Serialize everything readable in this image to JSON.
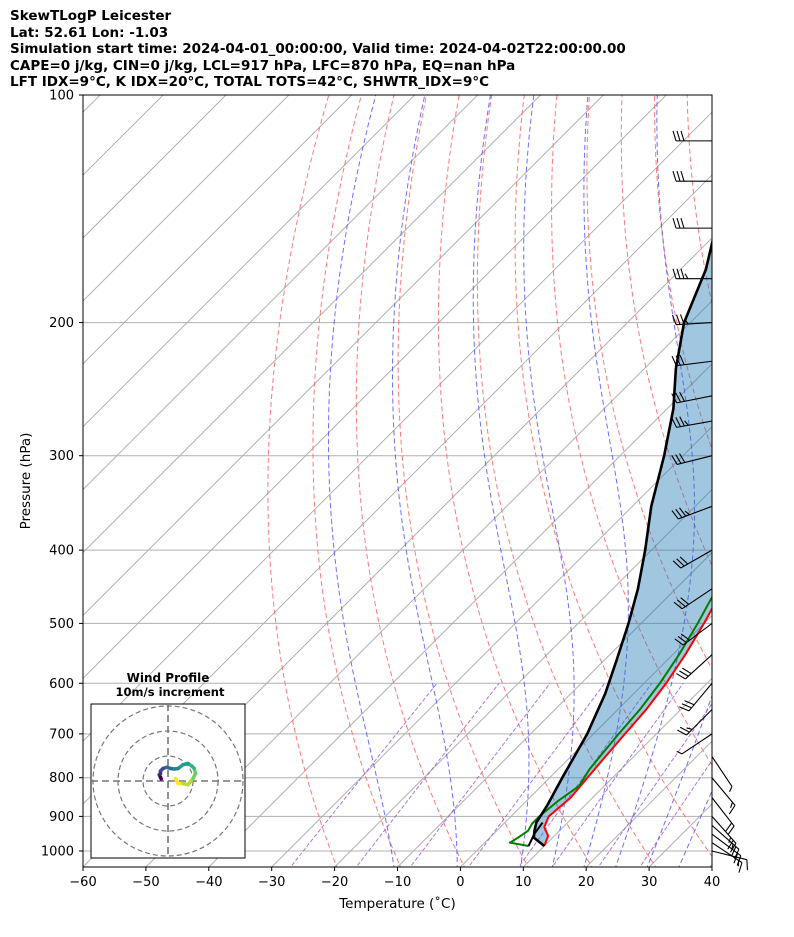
{
  "header": {
    "line1": "SkewTLogP Leicester",
    "line2": "Lat: 52.61   Lon: -1.03",
    "line3": "Simulation start time: 2024-04-01_00:00:00, Valid time: 2024-04-02T22:00:00.00",
    "line4": "CAPE=0 j/kg, CIN=0 j/kg, LCL=917 hPa, LFC=870 hPa, EQ=nan hPa",
    "line5": "LFT IDX=9°C, K IDX=20°C, TOTAL TOTS=42°C, SHWTR_IDX=9°C"
  },
  "chart_data": {
    "type": "line",
    "subtype": "skew-t log-p diagram",
    "xlabel": "Temperature (˚C)",
    "ylabel": "Pressure (hPa)",
    "xlim": [
      -60,
      40
    ],
    "ylim": [
      1050,
      100
    ],
    "x_ticks": [
      "−60",
      "−50",
      "−40",
      "−30",
      "−20",
      "−10",
      "0",
      "10",
      "20",
      "30",
      "40"
    ],
    "y_ticks": [
      "100",
      "200",
      "300",
      "400",
      "500",
      "600",
      "700",
      "800",
      "900",
      "1000"
    ],
    "y_log": true,
    "grid": true,
    "series": [
      {
        "role": "temperature",
        "color": "#ff0000",
        "points": [
          [
            10,
            985
          ],
          [
            9,
            955
          ],
          [
            7,
            930
          ],
          [
            6,
            900
          ],
          [
            6.5,
            850
          ],
          [
            6,
            800
          ],
          [
            5.5,
            750
          ],
          [
            5,
            700
          ],
          [
            4.5,
            650
          ],
          [
            3.5,
            600
          ],
          [
            2,
            550
          ],
          [
            0,
            500
          ],
          [
            -2.5,
            450
          ],
          [
            -5,
            410
          ],
          [
            -8,
            370
          ],
          [
            -10.5,
            340
          ],
          [
            -13,
            310
          ],
          [
            -16,
            290
          ],
          [
            -16,
            270
          ],
          [
            -13,
            250
          ],
          [
            -9,
            230
          ],
          [
            -4,
            215
          ],
          [
            0,
            200
          ],
          [
            3,
            185
          ],
          [
            6,
            170
          ],
          [
            8,
            155
          ],
          [
            10,
            140
          ],
          [
            12,
            125
          ],
          [
            15,
            110
          ],
          [
            17,
            100
          ]
        ]
      },
      {
        "role": "dewpoint",
        "color": "#008000",
        "points": [
          [
            7.5,
            985
          ],
          [
            4,
            975
          ],
          [
            4.5,
            960
          ],
          [
            5,
            940
          ],
          [
            4.5,
            920
          ],
          [
            4.5,
            900
          ],
          [
            5,
            860
          ],
          [
            6,
            820
          ],
          [
            5,
            780
          ],
          [
            4.5,
            740
          ],
          [
            4,
            700
          ],
          [
            3.5,
            650
          ],
          [
            2.5,
            600
          ],
          [
            1,
            550
          ],
          [
            -1,
            500
          ],
          [
            -3.5,
            450
          ],
          [
            -6.5,
            410
          ],
          [
            -10,
            370
          ],
          [
            -13,
            330
          ],
          [
            -16.5,
            300
          ],
          [
            -20,
            285
          ],
          [
            -20,
            270
          ],
          [
            -20,
            255
          ],
          [
            -24,
            240
          ],
          [
            -26,
            220
          ],
          [
            -25.5,
            205
          ],
          [
            -26,
            195
          ],
          [
            -25,
            185
          ],
          [
            -24,
            170
          ],
          [
            -22,
            160
          ],
          [
            -19,
            145
          ],
          [
            -14,
            130
          ],
          [
            -9,
            115
          ],
          [
            -5,
            100
          ]
        ]
      },
      {
        "role": "parcel",
        "color": "#000000",
        "points": [
          [
            10,
            985
          ],
          [
            7,
            960
          ],
          [
            6,
            940
          ],
          [
            5,
            917
          ],
          [
            4,
            870
          ],
          [
            2,
            800
          ],
          [
            -1,
            700
          ],
          [
            -4.5,
            620
          ],
          [
            -8,
            560
          ],
          [
            -12,
            500
          ],
          [
            -16,
            450
          ],
          [
            -21,
            400
          ],
          [
            -27,
            350
          ],
          [
            -33,
            300
          ],
          [
            -39,
            260
          ],
          [
            -45,
            230
          ],
          [
            -51,
            200
          ],
          [
            -56,
            170
          ],
          [
            -61,
            150
          ],
          [
            -66,
            130
          ],
          [
            -71,
            115
          ],
          [
            -75,
            100
          ]
        ]
      },
      {
        "role": "parcel-to-surface-dew",
        "color": "#000000",
        "points": [
          [
            7.5,
            985
          ],
          [
            6.5,
            950
          ],
          [
            6,
            917
          ]
        ]
      }
    ],
    "isotherm_step": 10,
    "dry_adiabats_theta_K": [
      250,
      260,
      270,
      280,
      290,
      300,
      310,
      320,
      330,
      340,
      350,
      360,
      370,
      380,
      390,
      400,
      410,
      420
    ],
    "moist_adiabats_start_C": [
      -10,
      0,
      10,
      15,
      20,
      25,
      30,
      35,
      40
    ],
    "mixing_ratios_gkg": [
      0.4,
      1,
      2,
      4,
      7,
      10,
      16,
      24
    ],
    "wind_barbs": [
      {
        "p": 1000,
        "u": -4,
        "v": 1
      },
      {
        "p": 975,
        "u": -6,
        "v": 4
      },
      {
        "p": 950,
        "u": -8,
        "v": 6
      },
      {
        "p": 925,
        "u": -9,
        "v": 8
      },
      {
        "p": 900,
        "u": -8,
        "v": 9
      },
      {
        "p": 850,
        "u": -7,
        "v": 9
      },
      {
        "p": 800,
        "u": -5,
        "v": 6
      },
      {
        "p": 750,
        "u": -2,
        "v": 3
      },
      {
        "p": 700,
        "u": 3,
        "v": 2
      },
      {
        "p": 650,
        "u": 10,
        "v": 10
      },
      {
        "p": 600,
        "u": 10,
        "v": 12
      },
      {
        "p": 550,
        "u": 11,
        "v": 10
      },
      {
        "p": 500,
        "u": 12,
        "v": 9
      },
      {
        "p": 450,
        "u": 12,
        "v": 8
      },
      {
        "p": 400,
        "u": 14,
        "v": 8
      },
      {
        "p": 350,
        "u": 16,
        "v": 6
      },
      {
        "p": 300,
        "u": 16,
        "v": 4
      },
      {
        "p": 270,
        "u": 17,
        "v": 3
      },
      {
        "p": 250,
        "u": 15,
        "v": 3
      },
      {
        "p": 225,
        "u": 16,
        "v": 2
      },
      {
        "p": 200,
        "u": 17,
        "v": 1
      },
      {
        "p": 175,
        "u": 18,
        "v": 0
      },
      {
        "p": 150,
        "u": 16,
        "v": 0
      },
      {
        "p": 130,
        "u": 16,
        "v": 0
      },
      {
        "p": 115,
        "u": 16,
        "v": 0
      }
    ],
    "inset": {
      "title": "Wind Profile",
      "subtitle": "10m/s increment",
      "ring_increment_ms": 10,
      "hodograph_uv": [
        [
          3,
          1
        ],
        [
          4,
          -1
        ],
        [
          6,
          -1
        ],
        [
          8,
          -1.5
        ],
        [
          10,
          1
        ],
        [
          11,
          3
        ],
        [
          10.5,
          5
        ],
        [
          9.5,
          6
        ],
        [
          8,
          7
        ],
        [
          6,
          6.5
        ],
        [
          4,
          5
        ],
        [
          2.5,
          4.8
        ],
        [
          1,
          5
        ],
        [
          -0.5,
          5.5
        ],
        [
          -2,
          5
        ],
        [
          -3,
          4
        ],
        [
          -3,
          3
        ],
        [
          -3.5,
          2.5
        ],
        [
          -3,
          1.5
        ],
        [
          -2.7,
          0.8
        ]
      ],
      "colormap": "viridis"
    }
  }
}
